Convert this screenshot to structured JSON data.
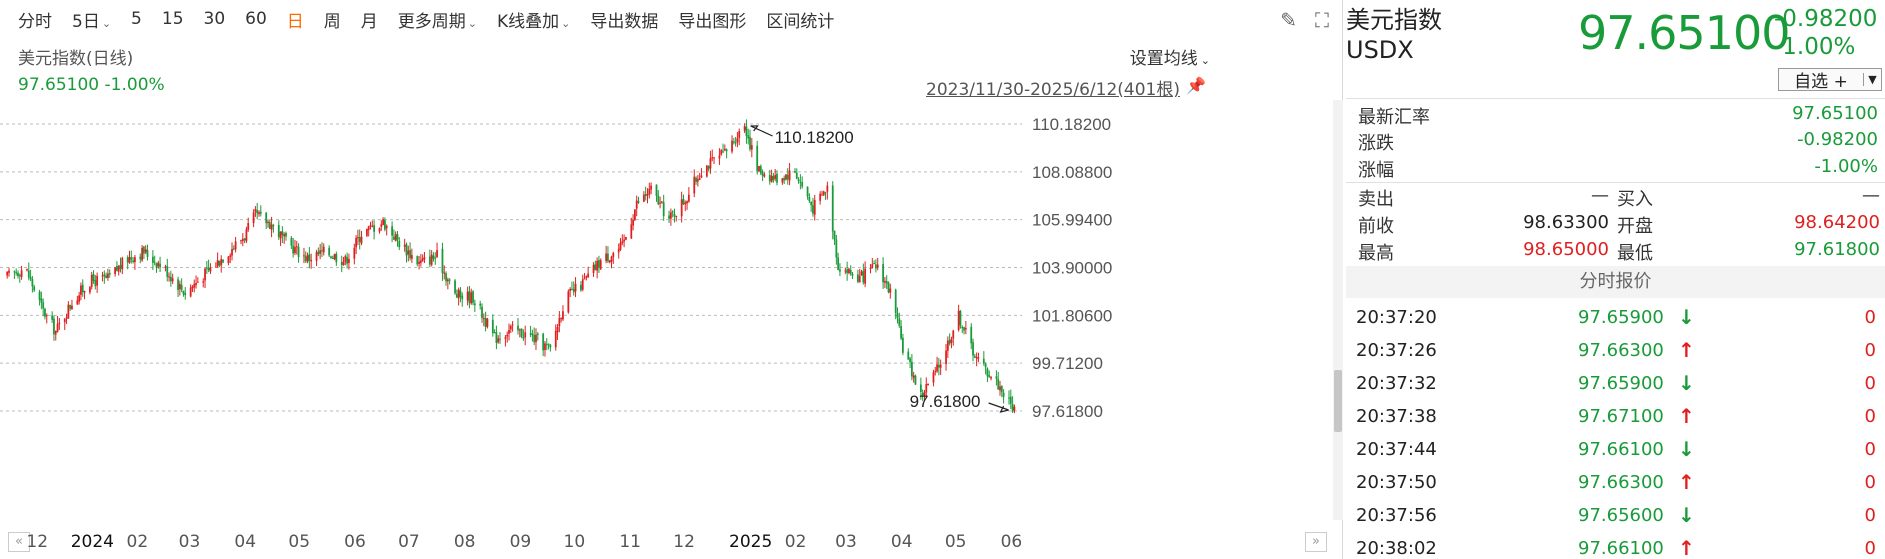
{
  "toolbar": {
    "items": [
      "分时",
      "5日",
      "5",
      "15",
      "30",
      "60",
      "日",
      "周",
      "月",
      "更多周期",
      "K线叠加",
      "导出数据",
      "导出图形",
      "区间统计"
    ],
    "active": "日"
  },
  "chart_header": {
    "series_name": "美元指数(日线)",
    "current_value": "97.65100 -1.00%",
    "ma_button": "设置均线",
    "range": "2023/11/30-2025/6/12(401根)"
  },
  "colors": {
    "up": "#e02020",
    "down": "#1a9b3a",
    "grid": "#bbbbbb"
  },
  "chart_data": {
    "type": "candlestick",
    "y_ticks": [
      "110.18200",
      "108.08800",
      "105.99400",
      "103.90000",
      "101.80600",
      "99.71200",
      "97.61800"
    ],
    "ylim": [
      97.618,
      110.182
    ],
    "x_ticks": [
      "12",
      "2024",
      "02",
      "03",
      "04",
      "05",
      "06",
      "07",
      "08",
      "09",
      "10",
      "11",
      "12",
      "2025",
      "02",
      "03",
      "04",
      "05",
      "06"
    ],
    "high_label": "110.18200",
    "low_label": "97.61800",
    "close_path": [
      [
        "2023-11-30",
        103.5
      ],
      [
        "2023-12-10",
        103.9
      ],
      [
        "2023-12-20",
        102.0
      ],
      [
        "2023-12-27",
        101.1
      ],
      [
        "2024-01-05",
        102.4
      ],
      [
        "2024-01-15",
        103.3
      ],
      [
        "2024-01-25",
        103.4
      ],
      [
        "2024-02-05",
        104.3
      ],
      [
        "2024-02-14",
        104.6
      ],
      [
        "2024-02-25",
        103.9
      ],
      [
        "2024-03-08",
        102.8
      ],
      [
        "2024-03-20",
        103.7
      ],
      [
        "2024-04-01",
        104.6
      ],
      [
        "2024-04-10",
        105.3
      ],
      [
        "2024-04-16",
        106.2
      ],
      [
        "2024-04-25",
        105.8
      ],
      [
        "2024-05-03",
        105.0
      ],
      [
        "2024-05-15",
        104.3
      ],
      [
        "2024-05-25",
        104.6
      ],
      [
        "2024-06-05",
        104.2
      ],
      [
        "2024-06-14",
        105.4
      ],
      [
        "2024-06-26",
        105.9
      ],
      [
        "2024-07-05",
        105.0
      ],
      [
        "2024-07-16",
        104.1
      ],
      [
        "2024-07-26",
        104.4
      ],
      [
        "2024-08-05",
        102.7
      ],
      [
        "2024-08-15",
        102.6
      ],
      [
        "2024-08-27",
        100.8
      ],
      [
        "2024-09-05",
        101.2
      ],
      [
        "2024-09-16",
        100.9
      ],
      [
        "2024-09-27",
        100.3
      ],
      [
        "2024-10-05",
        102.5
      ],
      [
        "2024-10-15",
        103.2
      ],
      [
        "2024-10-25",
        104.2
      ],
      [
        "2024-11-06",
        104.8
      ],
      [
        "2024-11-14",
        106.7
      ],
      [
        "2024-11-22",
        107.3
      ],
      [
        "2024-12-02",
        106.0
      ],
      [
        "2024-12-12",
        107.0
      ],
      [
        "2024-12-20",
        108.2
      ],
      [
        "2025-01-02",
        108.9
      ],
      [
        "2025-01-13",
        110.182
      ],
      [
        "2025-01-20",
        108.2
      ],
      [
        "2025-01-30",
        107.8
      ],
      [
        "2025-02-10",
        108.1
      ],
      [
        "2025-02-20",
        106.5
      ],
      [
        "2025-02-28",
        107.4
      ],
      [
        "2025-03-06",
        104.0
      ],
      [
        "2025-03-18",
        103.4
      ],
      [
        "2025-03-28",
        104.0
      ],
      [
        "2025-04-04",
        102.8
      ],
      [
        "2025-04-11",
        100.4
      ],
      [
        "2025-04-21",
        98.3
      ],
      [
        "2025-04-30",
        99.4
      ],
      [
        "2025-05-12",
        101.8
      ],
      [
        "2025-05-22",
        99.9
      ],
      [
        "2025-06-02",
        98.9
      ],
      [
        "2025-06-12",
        97.651
      ]
    ]
  },
  "quote": {
    "name": "美元指数",
    "code": "USDX",
    "price": "97.65100",
    "change": "-0.98200",
    "change_pct": "-1.00%",
    "watch_label": "自选 +",
    "latest_label": "最新汇率",
    "latest_value": "97.65100",
    "chg_label": "涨跌",
    "chg_value": "-0.98200",
    "chgpct_label": "涨幅",
    "chgpct_value": "-1.00%",
    "sell_label": "卖出",
    "sell_value": "—",
    "buy_label": "买入",
    "buy_value": "—",
    "prev_close_label": "前收",
    "prev_close_value": "98.63300",
    "open_label": "开盘",
    "open_value": "98.64200",
    "high_label": "最高",
    "high_value": "98.65000",
    "low_label": "最低",
    "low_value": "97.61800"
  },
  "ticks_title": "分时报价",
  "ticks": [
    {
      "time": "20:37:20",
      "price": "97.65900",
      "dir": "down",
      "vol": "0"
    },
    {
      "time": "20:37:26",
      "price": "97.66300",
      "dir": "up",
      "vol": "0"
    },
    {
      "time": "20:37:32",
      "price": "97.65900",
      "dir": "down",
      "vol": "0"
    },
    {
      "time": "20:37:38",
      "price": "97.67100",
      "dir": "up",
      "vol": "0"
    },
    {
      "time": "20:37:44",
      "price": "97.66100",
      "dir": "down",
      "vol": "0"
    },
    {
      "time": "20:37:50",
      "price": "97.66300",
      "dir": "up",
      "vol": "0"
    },
    {
      "time": "20:37:56",
      "price": "97.65600",
      "dir": "down",
      "vol": "0"
    },
    {
      "time": "20:38:02",
      "price": "97.66100",
      "dir": "up",
      "vol": "0"
    }
  ]
}
